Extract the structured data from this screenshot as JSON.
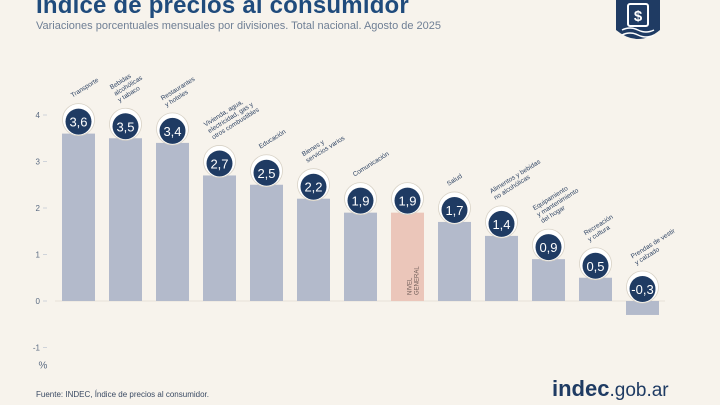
{
  "title": "Índice de precios al consumidor",
  "subtitle": "Variaciones porcentuales mensuales por divisiones. Total nacional. Agosto de 2025",
  "source": "Fuente: INDEC, Índice de precios al consumidor.",
  "brand": {
    "strong": "indec",
    "domain": ".gob.ar"
  },
  "colors": {
    "bar": "#b3bacb",
    "bar_general": "#ebc6ba",
    "badge": "#1f3b63",
    "badge_text": "#ffffff",
    "axis_text": "#5b6b82",
    "label_text": "#2f4464",
    "grid": "#cfd3da"
  },
  "chart_data": {
    "type": "bar",
    "title": "Índice de precios al consumidor",
    "subtitle": "Variaciones porcentuales mensuales por divisiones. Total nacional. Agosto de 2025",
    "xlabel": "",
    "ylabel": "%",
    "ylim": [
      -1,
      4
    ],
    "yticks": [
      -1,
      0,
      1,
      2,
      3,
      4
    ],
    "grid": false,
    "categories": [
      "Transporte",
      "Bebidas alcohólicas y tabaco",
      "Restaurantes y hoteles",
      "Vivienda, agua, electricidad, gas y otros combustibles",
      "Educación",
      "Bienes y servicios varios",
      "Comunicación",
      "NIVEL GENERAL",
      "Salud",
      "Alimentos y bebidas no alcohólicas",
      "Equipamiento y mantenimiento del hogar",
      "Recreación y cultura",
      "Prendas de vestir y calzado"
    ],
    "label_lines": [
      [
        "Transporte"
      ],
      [
        "Bebidas",
        "alcohólicas",
        "y tabaco"
      ],
      [
        "Restaurantes",
        "y hoteles"
      ],
      [
        "Vivienda, agua,",
        "electricidad, gas y",
        "otros combustibles"
      ],
      [
        "Educación"
      ],
      [
        "Bienes y",
        "servicios varios"
      ],
      [
        "Comunicación"
      ],
      [
        "NIVEL",
        "GENERAL"
      ],
      [
        "Salud"
      ],
      [
        "Alimentos y bebidas",
        "no alcohólicas"
      ],
      [
        "Equipamiento",
        "y mantenimiento",
        "del hogar"
      ],
      [
        "Recreación",
        "y cultura"
      ],
      [
        "Prendas de vestir",
        "y calzado"
      ]
    ],
    "values": [
      3.6,
      3.5,
      3.4,
      2.7,
      2.5,
      2.2,
      1.9,
      1.9,
      1.7,
      1.4,
      0.9,
      0.5,
      -0.3
    ],
    "value_labels": [
      "3,6",
      "3,5",
      "3,4",
      "2,7",
      "2,5",
      "2,2",
      "1,9",
      "1,9",
      "1,7",
      "1,4",
      "0,9",
      "0,5",
      "-0,3"
    ],
    "highlight_index": 7,
    "icons": [
      "bus-car-icon",
      "bottle-glass-icon",
      "plate-cutlery-icon",
      "building-bulb-icon",
      "books-icon",
      "scissors-comb-icon",
      "phone-icon",
      "shopping-cart-icon",
      "first-aid-icon",
      "food-basket-icon",
      "sofa-icon",
      "beach-umbrella-icon",
      "clothes-icon"
    ]
  }
}
